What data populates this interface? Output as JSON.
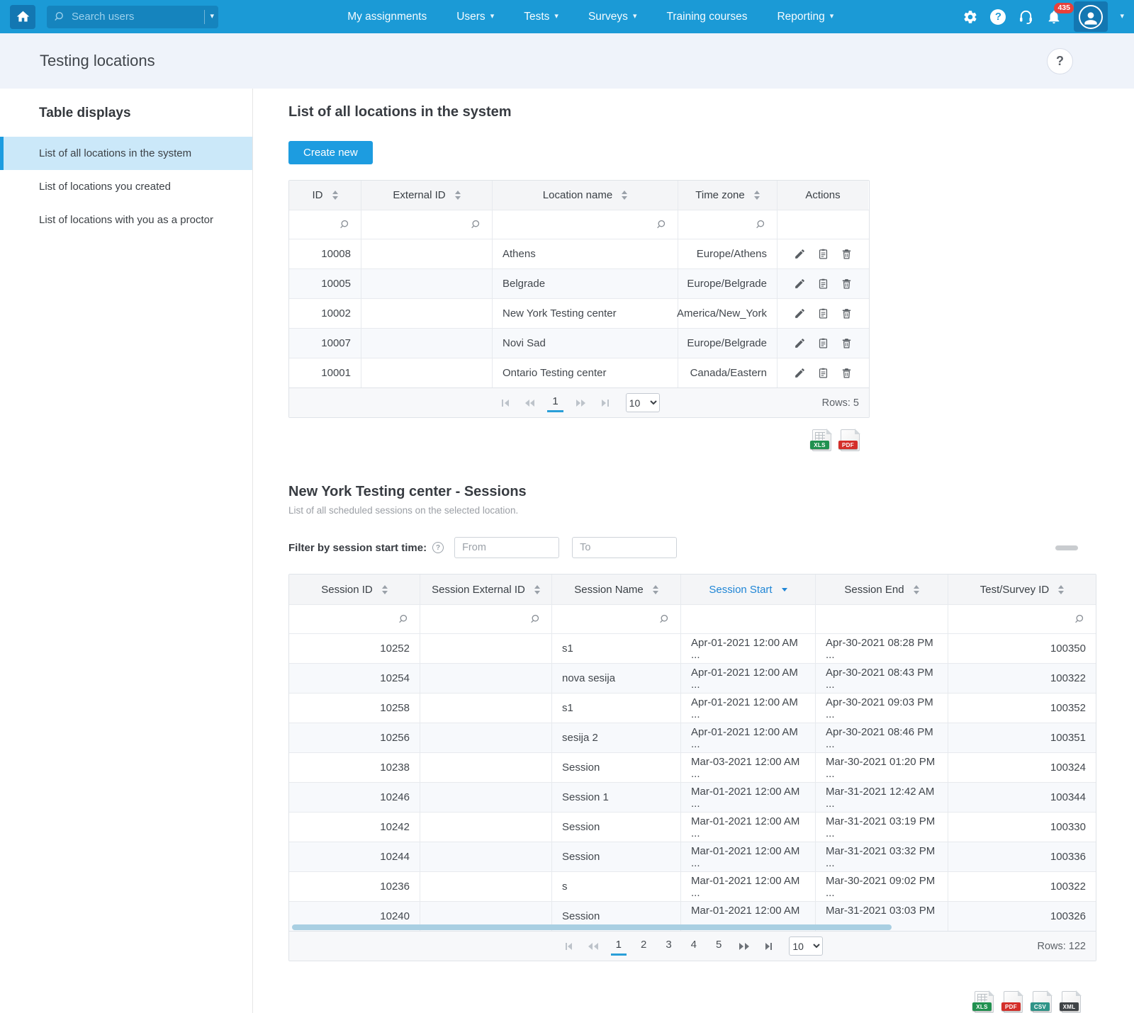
{
  "navbar": {
    "search_placeholder": "Search users",
    "menu": [
      {
        "label": "My assignments",
        "caret": false
      },
      {
        "label": "Users",
        "caret": true
      },
      {
        "label": "Tests",
        "caret": true
      },
      {
        "label": "Surveys",
        "caret": true
      },
      {
        "label": "Training courses",
        "caret": false
      },
      {
        "label": "Reporting",
        "caret": true
      }
    ],
    "notification_count": "435"
  },
  "page": {
    "title": "Testing locations",
    "help_label": "?"
  },
  "sidebar": {
    "title": "Table displays",
    "items": [
      {
        "label": "List of all locations in the system",
        "active": true
      },
      {
        "label": "List of locations you created",
        "active": false
      },
      {
        "label": "List of locations with you as a proctor",
        "active": false
      }
    ]
  },
  "locations_section": {
    "heading": "List of all locations in the system",
    "create_button": "Create new",
    "columns": [
      {
        "label": "ID",
        "sortable": true,
        "has_search": true
      },
      {
        "label": "External ID",
        "sortable": true,
        "has_search": true
      },
      {
        "label": "Location name",
        "sortable": true,
        "has_search": true
      },
      {
        "label": "Time zone",
        "sortable": true,
        "has_search": true
      },
      {
        "label": "Actions",
        "sortable": false,
        "has_search": false
      }
    ],
    "rows": [
      {
        "id": "10008",
        "external_id": "",
        "name": "Athens",
        "time_zone": "Europe/Athens"
      },
      {
        "id": "10005",
        "external_id": "",
        "name": "Belgrade",
        "time_zone": "Europe/Belgrade"
      },
      {
        "id": "10002",
        "external_id": "",
        "name": "New York Testing center",
        "time_zone": "America/New_York"
      },
      {
        "id": "10007",
        "external_id": "",
        "name": "Novi Sad",
        "time_zone": "Europe/Belgrade"
      },
      {
        "id": "10001",
        "external_id": "",
        "name": "Ontario Testing center",
        "time_zone": "Canada/Eastern"
      }
    ],
    "row_actions": [
      "edit",
      "details",
      "delete"
    ],
    "pagination": {
      "pages": [
        "1"
      ],
      "current_page": "1",
      "page_size": "10",
      "rows_label": "Rows: 5"
    },
    "exports": [
      {
        "type": "XLS"
      },
      {
        "type": "PDF"
      }
    ]
  },
  "sessions_section": {
    "heading": "New York Testing center - Sessions",
    "subtitle": "List of all scheduled sessions on the selected location.",
    "filter_label": "Filter by session start time:",
    "from_placeholder": "From",
    "to_placeholder": "To",
    "columns": [
      {
        "label": "Session ID",
        "sortable": true,
        "has_search": true,
        "sorted": false
      },
      {
        "label": "Session External ID",
        "sortable": true,
        "has_search": true,
        "sorted": false
      },
      {
        "label": "Session Name",
        "sortable": true,
        "has_search": true,
        "sorted": false
      },
      {
        "label": "Session Start",
        "sortable": true,
        "has_search": false,
        "sorted": true,
        "sort_dir": "desc"
      },
      {
        "label": "Session End",
        "sortable": true,
        "has_search": false,
        "sorted": false
      },
      {
        "label": "Test/Survey ID",
        "sortable": true,
        "has_search": true,
        "sorted": false
      }
    ],
    "rows": [
      {
        "id": "10252",
        "external_id": "",
        "name": "s1",
        "start": "Apr-01-2021 12:00 AM ...",
        "end": "Apr-30-2021 08:28 PM ...",
        "test_id": "100350"
      },
      {
        "id": "10254",
        "external_id": "",
        "name": "nova sesija",
        "start": "Apr-01-2021 12:00 AM ...",
        "end": "Apr-30-2021 08:43 PM ...",
        "test_id": "100322"
      },
      {
        "id": "10258",
        "external_id": "",
        "name": "s1",
        "start": "Apr-01-2021 12:00 AM ...",
        "end": "Apr-30-2021 09:03 PM ...",
        "test_id": "100352"
      },
      {
        "id": "10256",
        "external_id": "",
        "name": "sesija 2",
        "start": "Apr-01-2021 12:00 AM ...",
        "end": "Apr-30-2021 08:46 PM ...",
        "test_id": "100351"
      },
      {
        "id": "10238",
        "external_id": "",
        "name": "Session",
        "start": "Mar-03-2021 12:00 AM ...",
        "end": "Mar-30-2021 01:20 PM ...",
        "test_id": "100324"
      },
      {
        "id": "10246",
        "external_id": "",
        "name": "Session 1",
        "start": "Mar-01-2021 12:00 AM ...",
        "end": "Mar-31-2021 12:42 AM ...",
        "test_id": "100344"
      },
      {
        "id": "10242",
        "external_id": "",
        "name": "Session",
        "start": "Mar-01-2021 12:00 AM ...",
        "end": "Mar-31-2021 03:19 PM ...",
        "test_id": "100330"
      },
      {
        "id": "10244",
        "external_id": "",
        "name": "Session",
        "start": "Mar-01-2021 12:00 AM ...",
        "end": "Mar-31-2021 03:32 PM ...",
        "test_id": "100336"
      },
      {
        "id": "10236",
        "external_id": "",
        "name": "s",
        "start": "Mar-01-2021 12:00 AM ...",
        "end": "Mar-30-2021 09:02 PM ...",
        "test_id": "100322"
      },
      {
        "id": "10240",
        "external_id": "",
        "name": "Session",
        "start": "Mar-01-2021 12:00 AM ...",
        "end": "Mar-31-2021 03:03 PM ...",
        "test_id": "100326"
      }
    ],
    "pagination": {
      "pages": [
        "1",
        "2",
        "3",
        "4",
        "5"
      ],
      "current_page": "1",
      "page_size": "10",
      "rows_label": "Rows: 122"
    },
    "exports": [
      {
        "type": "XLS",
        "badge": "1"
      },
      {
        "type": "PDF",
        "badge": "2"
      },
      {
        "type": "CSV",
        "badge": "3"
      },
      {
        "type": "XML",
        "badge": "4"
      }
    ]
  },
  "colors": {
    "accent": "#1d9ce0",
    "navbar": "#1b9ad6",
    "badge_red": "#e65350",
    "sorted_link": "#2086d6"
  }
}
